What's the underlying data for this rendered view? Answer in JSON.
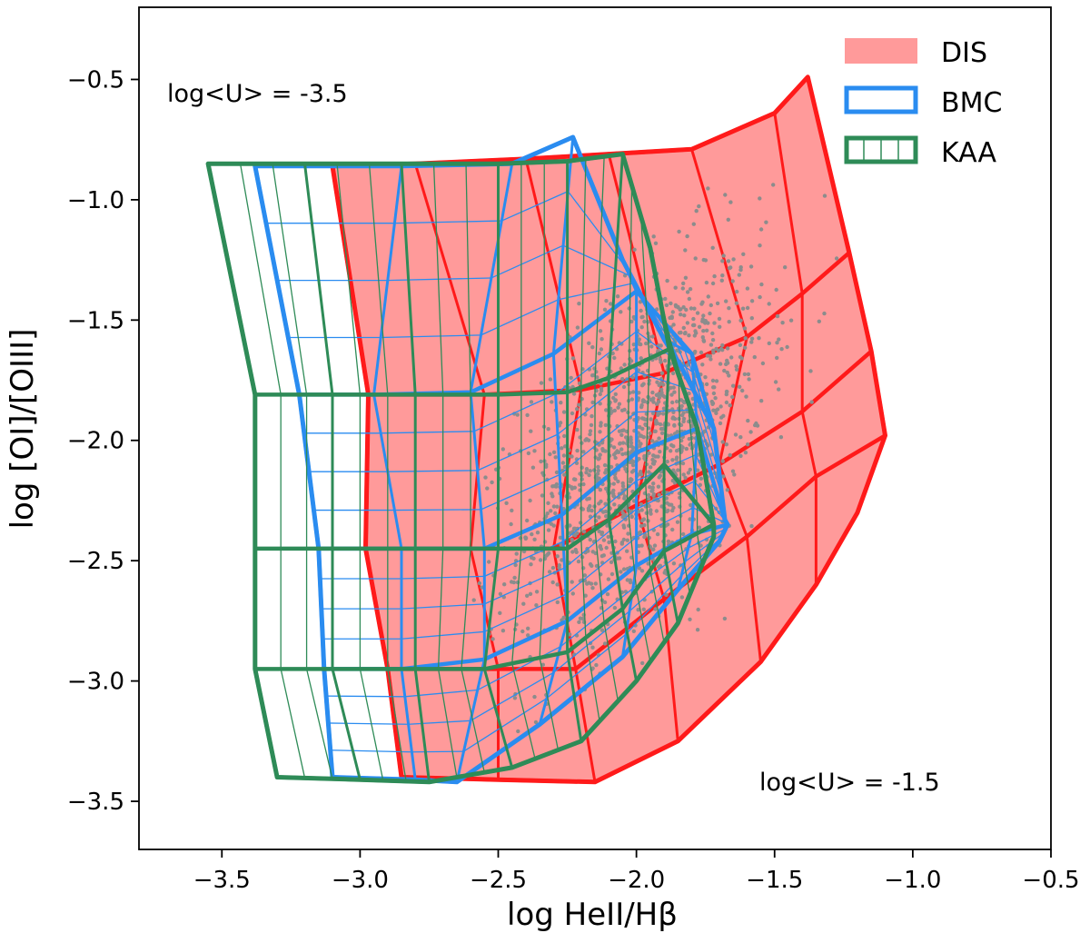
{
  "chart_data": {
    "type": "scatter",
    "xlabel": "log HeII/Hβ",
    "ylabel": "log [OI]/[OIII]",
    "xlim": [
      -3.8,
      -0.5
    ],
    "ylim": [
      -3.7,
      -0.2
    ],
    "xticks": [
      -3.5,
      -3.0,
      -2.5,
      -2.0,
      -1.5,
      -1.0,
      -0.5
    ],
    "yticks": [
      -3.5,
      -3.0,
      -2.5,
      -2.0,
      -1.5,
      -1.0,
      -0.5
    ],
    "xtick_labels": [
      "−3.5",
      "−3.0",
      "−2.5",
      "−2.0",
      "−1.5",
      "−1.0",
      "−0.5"
    ],
    "ytick_labels": [
      "−3.5",
      "−3.0",
      "−2.5",
      "−2.0",
      "−1.5",
      "−1.0",
      "−0.5"
    ],
    "grid": false,
    "legend_position": "top-right",
    "annotations": [
      {
        "text": "log<U> = -3.5",
        "position": "top-left"
      },
      {
        "text": "log<U> = -1.5",
        "position": "bottom-right"
      }
    ],
    "series": [
      {
        "name": "DIS",
        "style": "filled-grid",
        "color": "#ff1a1a",
        "fill": "#ff9a9a",
        "rows": [
          [
            [
              -3.1,
              -0.86
            ],
            [
              -2.8,
              -0.85
            ],
            [
              -2.4,
              -0.83
            ],
            [
              -2.1,
              -0.81
            ],
            [
              -1.8,
              -0.79
            ],
            [
              -1.5,
              -0.64
            ],
            [
              -1.38,
              -0.49
            ]
          ],
          [
            [
              -2.97,
              -1.81
            ],
            [
              -2.55,
              -1.81
            ],
            [
              -2.2,
              -1.79
            ],
            [
              -1.9,
              -1.72
            ],
            [
              -1.6,
              -1.57
            ],
            [
              -1.4,
              -1.39
            ],
            [
              -1.23,
              -1.22
            ]
          ],
          [
            [
              -2.98,
              -2.45
            ],
            [
              -2.6,
              -2.45
            ],
            [
              -2.3,
              -2.45
            ],
            [
              -2.0,
              -2.27
            ],
            [
              -1.7,
              -2.1
            ],
            [
              -1.4,
              -1.88
            ],
            [
              -1.15,
              -1.63
            ]
          ],
          [
            [
              -2.9,
              -2.95
            ],
            [
              -2.5,
              -2.95
            ],
            [
              -2.22,
              -2.95
            ],
            [
              -1.9,
              -2.66
            ],
            [
              -1.6,
              -2.4
            ],
            [
              -1.35,
              -2.15
            ],
            [
              -1.1,
              -1.98
            ]
          ],
          [
            [
              -2.85,
              -3.4
            ],
            [
              -2.5,
              -3.41
            ],
            [
              -2.15,
              -3.42
            ],
            [
              -1.85,
              -3.25
            ],
            [
              -1.55,
              -2.92
            ],
            [
              -1.35,
              -2.6
            ],
            [
              -1.2,
              -2.3
            ]
          ]
        ]
      },
      {
        "name": "BMC",
        "style": "outline-grid",
        "color": "#2a8cf0",
        "rows": [
          [
            [
              -3.38,
              -0.86
            ],
            [
              -2.85,
              -0.86
            ],
            [
              -2.45,
              -0.85
            ],
            [
              -2.23,
              -0.74
            ],
            [
              -2.05,
              -1.25
            ],
            [
              -1.9,
              -1.58
            ],
            [
              -1.84,
              -1.69
            ]
          ],
          [
            [
              -3.22,
              -1.81
            ],
            [
              -2.95,
              -1.81
            ],
            [
              -2.6,
              -1.8
            ],
            [
              -2.3,
              -1.64
            ],
            [
              -2.0,
              -1.38
            ],
            [
              -1.8,
              -1.64
            ],
            [
              -1.72,
              -1.95
            ]
          ],
          [
            [
              -3.15,
              -2.45
            ],
            [
              -2.85,
              -2.45
            ],
            [
              -2.55,
              -2.45
            ],
            [
              -2.27,
              -2.31
            ],
            [
              -2.0,
              -2.05
            ],
            [
              -1.78,
              -1.95
            ],
            [
              -1.68,
              -2.33
            ]
          ],
          [
            [
              -3.13,
              -2.95
            ],
            [
              -2.85,
              -2.95
            ],
            [
              -2.55,
              -2.91
            ],
            [
              -2.25,
              -2.75
            ],
            [
              -2.0,
              -2.52
            ],
            [
              -1.8,
              -2.39
            ],
            [
              -1.67,
              -2.35
            ]
          ],
          [
            [
              -3.1,
              -3.4
            ],
            [
              -2.8,
              -3.41
            ],
            [
              -2.65,
              -3.42
            ],
            [
              -2.35,
              -3.18
            ],
            [
              -2.05,
              -2.9
            ],
            [
              -1.85,
              -2.62
            ],
            [
              -1.7,
              -2.42
            ]
          ]
        ]
      },
      {
        "name": "KAA",
        "style": "outline-grid",
        "color": "#2e8b57",
        "rows": [
          [
            [
              -3.55,
              -0.85
            ],
            [
              -3.2,
              -0.85
            ],
            [
              -2.85,
              -0.85
            ],
            [
              -2.5,
              -0.85
            ],
            [
              -2.25,
              -0.84
            ],
            [
              -2.05,
              -0.81
            ],
            [
              -1.95,
              -1.2
            ],
            [
              -1.88,
              -1.62
            ]
          ],
          [
            [
              -3.38,
              -1.81
            ],
            [
              -3.1,
              -1.81
            ],
            [
              -2.8,
              -1.81
            ],
            [
              -2.5,
              -1.81
            ],
            [
              -2.25,
              -1.8
            ],
            [
              -2.1,
              -1.74
            ],
            [
              -1.88,
              -1.62
            ],
            [
              -1.78,
              -1.95
            ]
          ],
          [
            [
              -3.38,
              -2.45
            ],
            [
              -3.1,
              -2.45
            ],
            [
              -2.8,
              -2.45
            ],
            [
              -2.5,
              -2.45
            ],
            [
              -2.25,
              -2.45
            ],
            [
              -2.1,
              -2.33
            ],
            [
              -1.9,
              -2.1
            ],
            [
              -1.72,
              -2.35
            ]
          ],
          [
            [
              -3.38,
              -2.95
            ],
            [
              -3.1,
              -2.95
            ],
            [
              -2.8,
              -2.95
            ],
            [
              -2.55,
              -2.95
            ],
            [
              -2.25,
              -2.88
            ],
            [
              -2.05,
              -2.7
            ],
            [
              -1.9,
              -2.46
            ],
            [
              -1.72,
              -2.35
            ]
          ],
          [
            [
              -3.3,
              -3.4
            ],
            [
              -3.0,
              -3.41
            ],
            [
              -2.75,
              -3.42
            ],
            [
              -2.45,
              -3.36
            ],
            [
              -2.2,
              -3.25
            ],
            [
              -2.0,
              -3.0
            ],
            [
              -1.85,
              -2.76
            ],
            [
              -1.72,
              -2.4
            ]
          ]
        ]
      }
    ],
    "scatter": {
      "color": "#8c8c8c",
      "count": 1400,
      "center": [
        -1.98,
        -2.02
      ],
      "spread": [
        0.22,
        0.33
      ],
      "x_range": [
        -2.6,
        -0.65
      ],
      "y_range": [
        -3.35,
        -0.75
      ]
    }
  }
}
